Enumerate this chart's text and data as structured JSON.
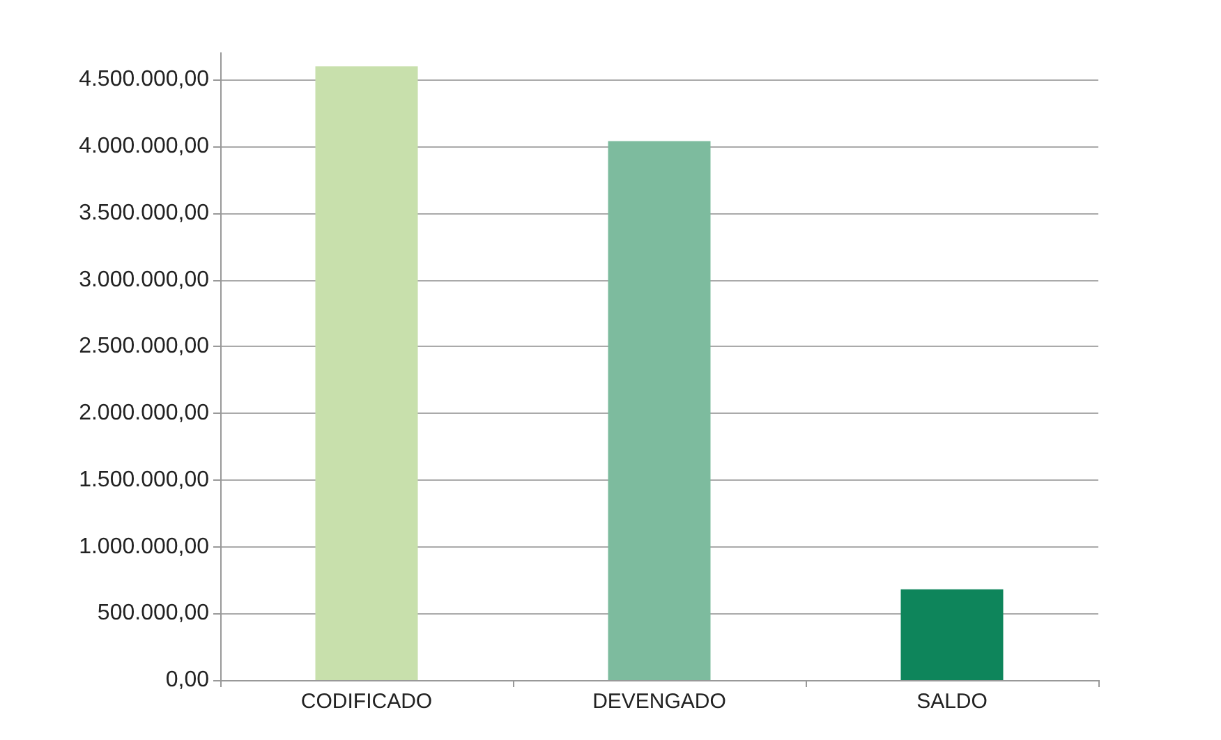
{
  "chart_data": {
    "type": "bar",
    "categories": [
      "CODIFICADO",
      "DEVENGADO",
      "SALDO"
    ],
    "values": [
      4600000,
      4040000,
      680000
    ],
    "colors": [
      "#c8e0ac",
      "#7dbb9e",
      "#0e855b"
    ],
    "ylim": [
      0,
      4700000
    ],
    "yticks": [
      {
        "value": 0,
        "label": "0,00"
      },
      {
        "value": 500000,
        "label": "500.000,00"
      },
      {
        "value": 1000000,
        "label": "1.000.000,00"
      },
      {
        "value": 1500000,
        "label": "1.500.000,00"
      },
      {
        "value": 2000000,
        "label": "2.000.000,00"
      },
      {
        "value": 2500000,
        "label": "2.500.000,00"
      },
      {
        "value": 3000000,
        "label": "3.000.000,00"
      },
      {
        "value": 3500000,
        "label": "3.500.000,00"
      },
      {
        "value": 4000000,
        "label": "4.000.000,00"
      },
      {
        "value": 4500000,
        "label": "4.500.000,00"
      }
    ],
    "grid": true
  }
}
